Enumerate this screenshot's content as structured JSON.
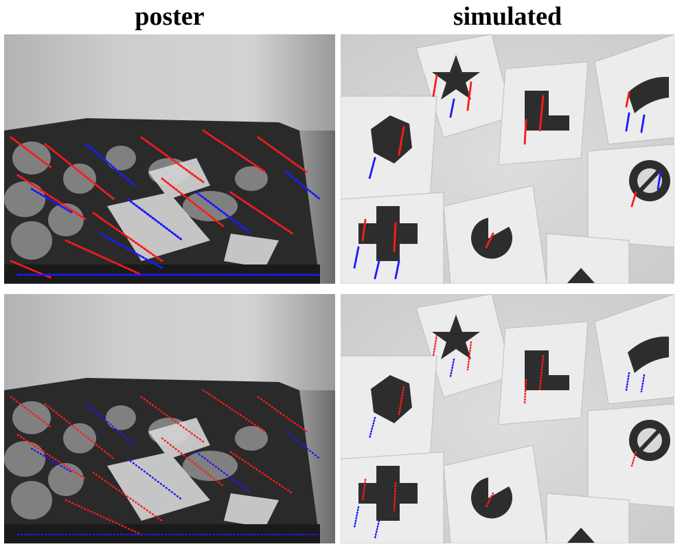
{
  "titles": {
    "left": "poster",
    "right": "simulated"
  },
  "colors": {
    "positive_events": "#ff1a1a",
    "negative_events": "#1a1aff"
  },
  "panels": [
    {
      "id": "poster-top",
      "scene": "poster",
      "row": 1
    },
    {
      "id": "simulated-top",
      "scene": "shapes",
      "row": 1
    },
    {
      "id": "poster-bottom",
      "scene": "poster",
      "row": 2
    },
    {
      "id": "simulated-bottom",
      "scene": "shapes",
      "row": 2
    }
  ]
}
